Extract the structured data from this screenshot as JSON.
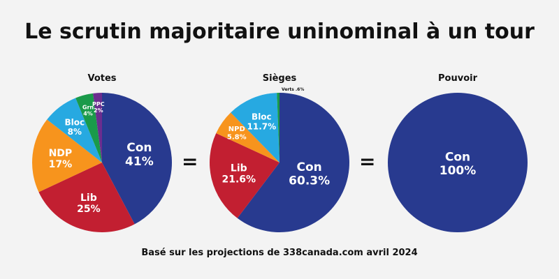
{
  "title": "Le scrutin majoritaire uninominal à un tour",
  "footer": "Basé sur les projections de 338canada.com avril 2024",
  "equals": "=",
  "chart_data": [
    {
      "type": "pie",
      "title": "Votes",
      "slices": [
        {
          "label": "Con",
          "value": 41,
          "display": "41%",
          "color": "#283a8f"
        },
        {
          "label": "Lib",
          "value": 25,
          "display": "25%",
          "color": "#c21f31"
        },
        {
          "label": "NDP",
          "value": 17,
          "display": "17%",
          "color": "#f7941d"
        },
        {
          "label": "Bloc",
          "value": 8,
          "display": "8%",
          "color": "#27a9e1"
        },
        {
          "label": "Grn",
          "value": 4,
          "display": "4%",
          "color": "#1a9a4a"
        },
        {
          "label": "PPC",
          "value": 2,
          "display": "2%",
          "color": "#6b2d8f"
        }
      ]
    },
    {
      "type": "pie",
      "title": "Sièges",
      "slices": [
        {
          "label": "Con",
          "value": 60.3,
          "display": "60.3%",
          "color": "#283a8f"
        },
        {
          "label": "Lib",
          "value": 21.6,
          "display": "21.6%",
          "color": "#c21f31"
        },
        {
          "label": "NPD",
          "value": 5.8,
          "display": "5.8%",
          "color": "#f7941d"
        },
        {
          "label": "Bloc",
          "value": 11.7,
          "display": "11.7%",
          "color": "#27a9e1"
        },
        {
          "label": "Verts",
          "value": 0.6,
          "display": ".6%",
          "color": "#1a9a4a"
        }
      ]
    },
    {
      "type": "pie",
      "title": "Pouvoir",
      "slices": [
        {
          "label": "Con",
          "value": 100,
          "display": "100%",
          "color": "#283a8f"
        }
      ]
    }
  ]
}
